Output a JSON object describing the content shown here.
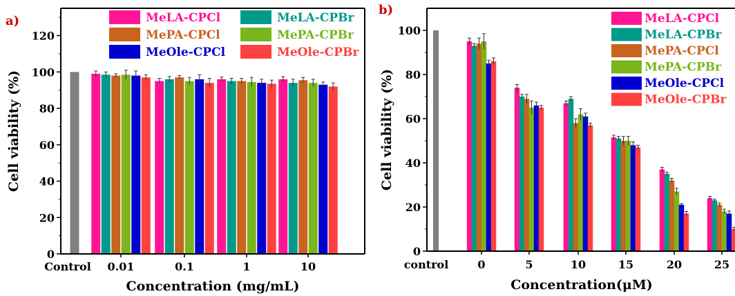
{
  "chart_data": [
    {
      "type": "bar",
      "panel_label": "a)",
      "xlabel": "Concentration (mg/mL)",
      "ylabel": "Cell viability (%)",
      "ylim": [
        0,
        135
      ],
      "yticks": [
        "0",
        "20",
        "40",
        "60",
        "80",
        "100",
        "120"
      ],
      "control": {
        "label": "Control",
        "value": 100,
        "color": "#808080"
      },
      "categories": [
        "0.01",
        "0.1",
        "1",
        "10"
      ],
      "legend_columns": 2,
      "legend_placement": "top",
      "series": [
        {
          "name": "MeLA-CPCl",
          "color": "#ff1493",
          "values": [
            99,
            95,
            96,
            96
          ],
          "errors": [
            1.5,
            1.5,
            1.2,
            1.5
          ]
        },
        {
          "name": "MeLA-CPBr",
          "color": "#009a8a",
          "values": [
            98.5,
            96,
            95,
            94
          ],
          "errors": [
            1.5,
            1.5,
            1.5,
            2
          ]
        },
        {
          "name": "MePA-CPCl",
          "color": "#c8641e",
          "values": [
            98,
            97,
            95,
            95.5
          ],
          "errors": [
            1,
            1,
            1.5,
            1.5
          ]
        },
        {
          "name": "MePA-CPBr",
          "color": "#7ab51d",
          "values": [
            98.5,
            95,
            94.5,
            94
          ],
          "errors": [
            2.5,
            2,
            2.5,
            2
          ]
        },
        {
          "name": "MeOle-CPCl",
          "color": "#0000d0",
          "values": [
            98,
            96,
            94,
            93
          ],
          "errors": [
            2.5,
            2.5,
            2,
            1.5
          ]
        },
        {
          "name": "MeOle-CPBr",
          "color": "#ff4040",
          "values": [
            97,
            94,
            93.5,
            92
          ],
          "errors": [
            1.5,
            2.5,
            2,
            2
          ]
        }
      ]
    },
    {
      "type": "bar",
      "panel_label": "b)",
      "xlabel": "Concentration(μM)",
      "ylabel": "Cell viability (%)",
      "ylim": [
        0,
        110
      ],
      "yticks": [
        "0",
        "20",
        "40",
        "60",
        "80",
        "100"
      ],
      "control": {
        "label": "control",
        "value": 100,
        "color": "#808080"
      },
      "x_tick_labels": [
        "0",
        "5",
        "10",
        "15",
        "20",
        "25"
      ],
      "legend_columns": 1,
      "legend_placement": "top-right",
      "series": [
        {
          "name": "MeLA-CPCl",
          "color": "#ff1493",
          "values": [
            95,
            74,
            67,
            51.5,
            37,
            24
          ],
          "errors": [
            1.5,
            1.5,
            1,
            1,
            1,
            0.8
          ]
        },
        {
          "name": "MeLA-CPBr",
          "color": "#009a8a",
          "values": [
            93,
            70,
            69,
            51,
            35,
            23
          ],
          "errors": [
            1,
            1,
            1,
            1,
            0.8,
            0.5
          ]
        },
        {
          "name": "MePA-CPCl",
          "color": "#c8641e",
          "values": [
            94,
            69,
            58,
            50,
            32,
            21
          ],
          "errors": [
            2.5,
            2,
            2,
            2,
            1,
            0.8
          ]
        },
        {
          "name": "MePA-CPBr",
          "color": "#7ab51d",
          "values": [
            95,
            65,
            62,
            50,
            27,
            18
          ],
          "errors": [
            3.5,
            3,
            2.5,
            2,
            1.5,
            1
          ]
        },
        {
          "name": "MeOle-CPCl",
          "color": "#0000d0",
          "values": [
            85,
            66,
            61,
            48,
            21,
            17
          ],
          "errors": [
            1.5,
            1.5,
            1.5,
            1.5,
            0.5,
            1.2
          ]
        },
        {
          "name": "MeOle-CPBr",
          "color": "#ff4040",
          "values": [
            86,
            65,
            57,
            47,
            17,
            10
          ],
          "errors": [
            1.5,
            1,
            1,
            1,
            1,
            0.8
          ]
        }
      ]
    }
  ]
}
